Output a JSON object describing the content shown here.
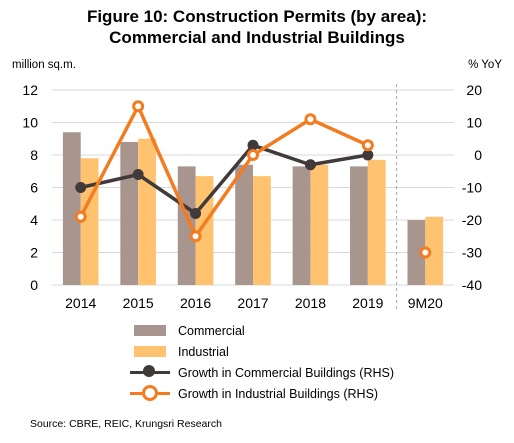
{
  "title_line1": "Figure 10: Construction Permits (by area):",
  "title_line2": "Commercial and Industrial Buildings",
  "source": "Source: CBRE, REIC, Krungsri Research",
  "legend": {
    "commercial": "Commercial",
    "industrial": "Industrial",
    "growth_commercial": "Growth in Commercial Buildings (RHS)",
    "growth_industrial": "Growth in Industrial Buildings (RHS)"
  },
  "colors": {
    "commercial": "#a8958e",
    "industrial": "#ffc36f",
    "growth_commercial": "#403a3a",
    "growth_industrial": "#f47b20",
    "grid": "#d9d9d9",
    "divider": "#a6a6a6"
  },
  "chart_data": {
    "type": "bar",
    "categories": [
      "2014",
      "2015",
      "2016",
      "2017",
      "2018",
      "2019",
      "9M20"
    ],
    "ylabel": "million sq.m.",
    "ylabel_right": "% YoY",
    "ylim": [
      0,
      12
    ],
    "ylim_right": [
      -40,
      20
    ],
    "yticks": [
      "0",
      "2",
      "4",
      "6",
      "8",
      "10",
      "12"
    ],
    "yticks_right": [
      "-40",
      "-30",
      "-20",
      "-10",
      "0",
      "10",
      "20"
    ],
    "grid": true,
    "divider_before": "9M20",
    "series": [
      {
        "name": "Commercial",
        "kind": "bar",
        "axis": "left",
        "values": [
          9.4,
          8.8,
          7.3,
          7.4,
          7.3,
          7.3,
          4.0
        ]
      },
      {
        "name": "Industrial",
        "kind": "bar",
        "axis": "left",
        "values": [
          7.8,
          9.0,
          6.7,
          6.7,
          7.4,
          7.7,
          4.2
        ]
      },
      {
        "name": "Growth in Commercial Buildings (RHS)",
        "kind": "line",
        "axis": "right",
        "values": [
          -10,
          -6,
          -18,
          3,
          -3,
          0,
          null
        ]
      },
      {
        "name": "Growth in Industrial Buildings (RHS)",
        "kind": "line",
        "axis": "right",
        "values": [
          -19,
          15,
          -25,
          0,
          11,
          3,
          -30
        ],
        "line_break_before_last": true
      }
    ]
  }
}
